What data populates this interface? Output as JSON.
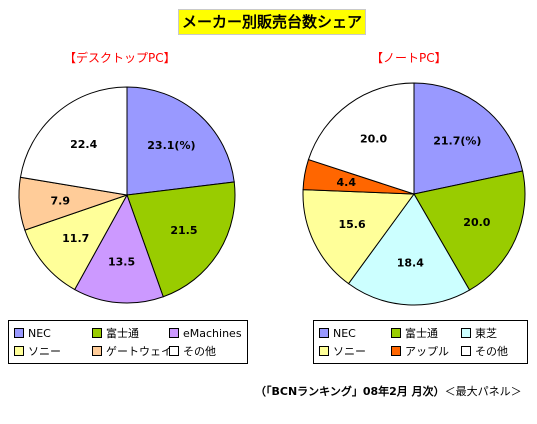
{
  "title": "メーカー別販売台数シェア",
  "footer": {
    "source": "（「BCNランキング」08年2月 月次）",
    "note": "＜最大パネル＞"
  },
  "chart_data": [
    {
      "type": "pie",
      "title": "【デスクトップPC】",
      "unit_label": "(%)",
      "slices": [
        {
          "name": "NEC",
          "value": 23.1,
          "label": "23.1",
          "color": "#9999ff"
        },
        {
          "name": "富士通",
          "value": 21.5,
          "label": "21.5",
          "color": "#99cc00"
        },
        {
          "name": "eMachines",
          "value": 13.5,
          "label": "13.5",
          "color": "#cc99ff"
        },
        {
          "name": "ソニー",
          "value": 11.7,
          "label": "11.7",
          "color": "#ffff99"
        },
        {
          "name": "ゲートウェイ",
          "value": 7.9,
          "label": "7.9",
          "color": "#ffcc99"
        },
        {
          "name": "その他",
          "value": 22.4,
          "label": "22.4",
          "color": "#ffffff"
        }
      ]
    },
    {
      "type": "pie",
      "title": "【ノートPC】",
      "unit_label": "(%)",
      "slices": [
        {
          "name": "NEC",
          "value": 21.7,
          "label": "21.7",
          "color": "#9999ff"
        },
        {
          "name": "富士通",
          "value": 20.0,
          "label": "20.0",
          "color": "#99cc00"
        },
        {
          "name": "東芝",
          "value": 18.4,
          "label": "18.4",
          "color": "#ccffff"
        },
        {
          "name": "ソニー",
          "value": 15.6,
          "label": "15.6",
          "color": "#ffff99"
        },
        {
          "name": "アップル",
          "value": 4.4,
          "label": "4.4",
          "color": "#ff6600"
        },
        {
          "name": "その他",
          "value": 20.0,
          "label": "20.0",
          "color": "#ffffff"
        }
      ]
    }
  ]
}
